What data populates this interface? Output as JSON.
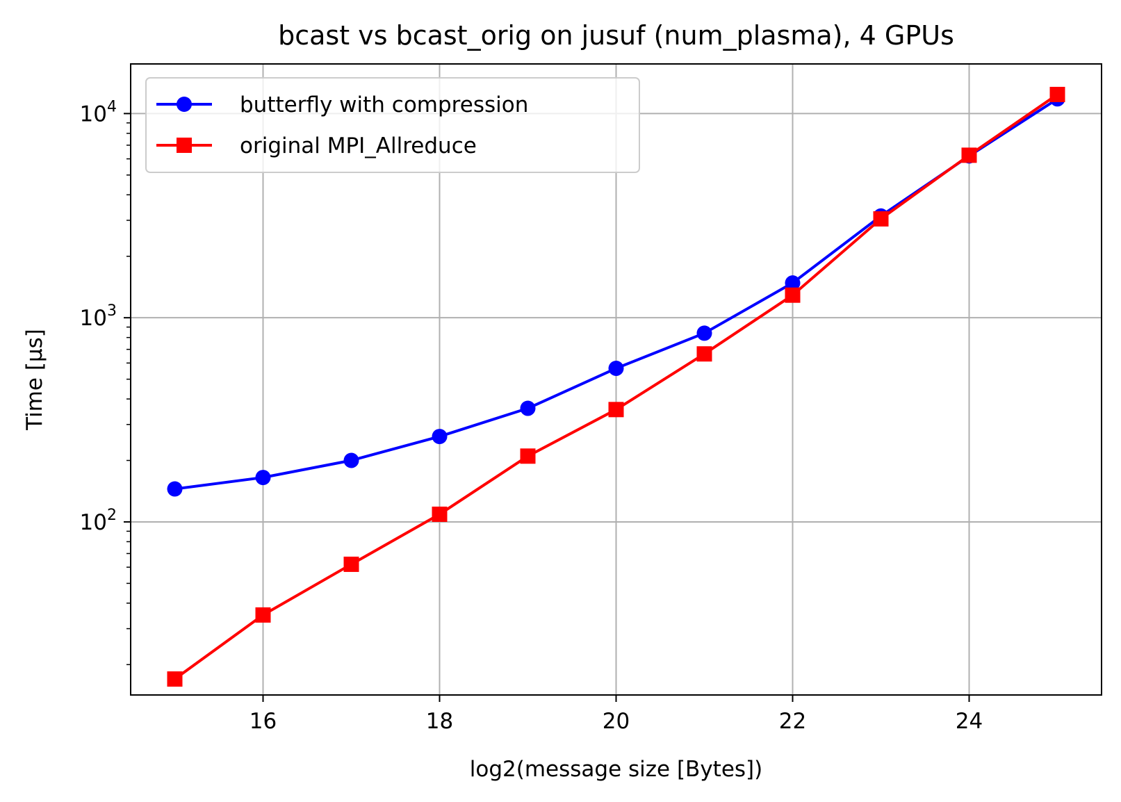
{
  "chart_data": {
    "type": "line",
    "title": "bcast vs bcast_orig on jusuf (num_plasma), 4 GPUs",
    "xlabel": "log2(message size [Bytes])",
    "ylabel": "Time [µs]",
    "xlim": [
      14.5,
      25.5
    ],
    "ylim": [
      14.2,
      17500
    ],
    "yscale": "log",
    "grid": true,
    "legend_position": "upper-left",
    "x_ticks": [
      16,
      18,
      20,
      22,
      24
    ],
    "x_tick_labels": [
      "16",
      "18",
      "20",
      "22",
      "24"
    ],
    "y_ticks": [
      100,
      1000,
      10000
    ],
    "y_tick_labels": [
      {
        "base": "10",
        "exp": "2"
      },
      {
        "base": "10",
        "exp": "3"
      },
      {
        "base": "10",
        "exp": "4"
      }
    ],
    "x": [
      15,
      16,
      17,
      18,
      19,
      20,
      21,
      22,
      23,
      24,
      25
    ],
    "series": [
      {
        "name": "butterfly with compression",
        "color": "#0000ff",
        "marker": "circle",
        "values": [
          145,
          165,
          200,
          262,
          360,
          565,
          840,
          1480,
          3150,
          6200,
          11800
        ]
      },
      {
        "name": "original MPI_Allreduce",
        "color": "#ff0000",
        "marker": "square",
        "values": [
          17,
          35,
          62,
          109,
          210,
          355,
          665,
          1290,
          3050,
          6250,
          12400
        ]
      }
    ]
  }
}
